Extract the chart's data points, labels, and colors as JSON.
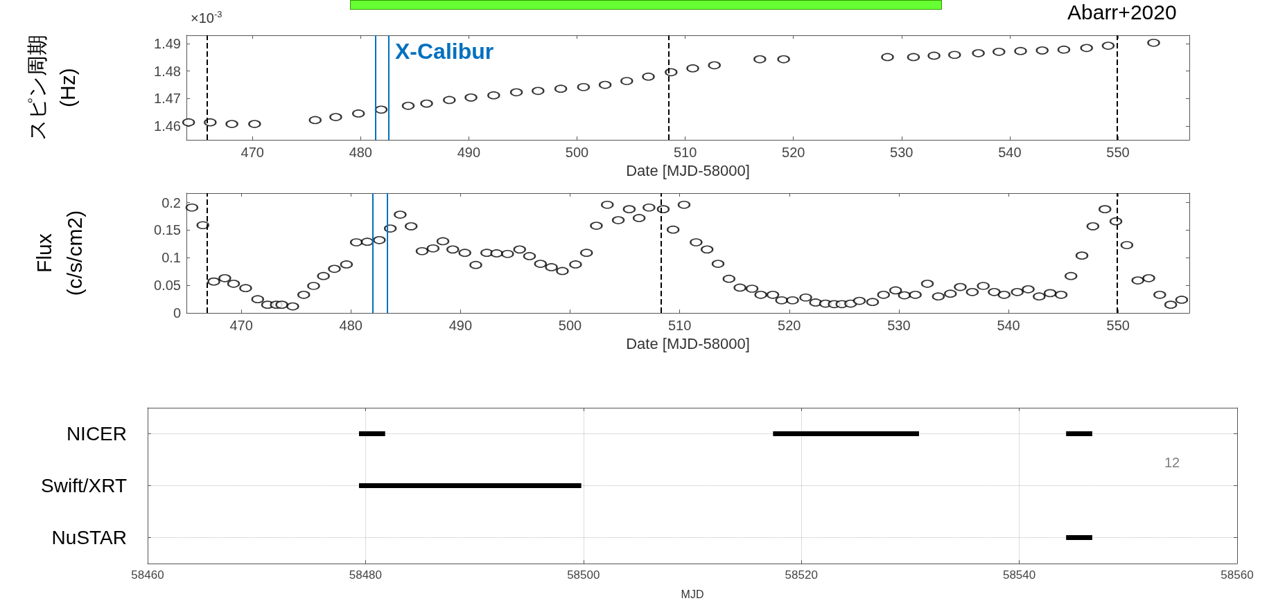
{
  "chart_data": [
    {
      "type": "scatter",
      "ylabel": "スピン周期\n(Hz)",
      "xlabel": "Date [MJD-58000]",
      "annotations": [
        "×10$^{-3}$",
        "Abarr+2020",
        "X-Calibur"
      ],
      "x": [
        464.1,
        466.1,
        468.1,
        470.2,
        475.8,
        477.7,
        479.8,
        481.9,
        484.4,
        486.1,
        488.2,
        490.2,
        492.3,
        494.4,
        496.4,
        498.5,
        500.6,
        502.6,
        504.6,
        506.6,
        508.7,
        510.7,
        512.7,
        516.9,
        519.1,
        528.7,
        531.1,
        533.0,
        534.9,
        537.1,
        539.0,
        541.0,
        543.0,
        545.0,
        547.1,
        549.1,
        553.3
      ],
      "values": [
        1.4614,
        1.4614,
        1.4608,
        1.4608,
        1.4622,
        1.4633,
        1.4646,
        1.466,
        1.4674,
        1.4682,
        1.4695,
        1.4704,
        1.4712,
        1.4723,
        1.4728,
        1.4736,
        1.4742,
        1.475,
        1.4764,
        1.478,
        1.4796,
        1.481,
        1.4821,
        1.4843,
        1.4843,
        1.4851,
        1.4851,
        1.4856,
        1.4859,
        1.4865,
        1.487,
        1.4873,
        1.4875,
        1.4878,
        1.4884,
        1.4892,
        1.4903
      ],
      "color": "#000000",
      "marker": "circle",
      "xlim": [
        463.9,
        556.6
      ],
      "ylim": [
        1.455,
        1.493
      ],
      "xticks": [
        470,
        480,
        490,
        500,
        510,
        520,
        530,
        540,
        550
      ],
      "yticks": [
        1.46,
        1.47,
        1.48,
        1.49
      ],
      "ref_lines": [
        {
          "axis": "x",
          "value": 465.8,
          "color": "#000000",
          "line_style": "dashed"
        },
        {
          "axis": "x",
          "value": 508.5,
          "color": "#000000",
          "line_style": "dashed"
        },
        {
          "axis": "x",
          "value": 549.9,
          "color": "#000000",
          "line_style": "dashed"
        },
        {
          "axis": "x",
          "value": 481.4,
          "color": "#0070c0",
          "line_style": "solid"
        },
        {
          "axis": "x",
          "value": 482.6,
          "color": "#0070c0",
          "line_style": "solid"
        }
      ]
    },
    {
      "type": "scatter",
      "ylabel": "Flux\n(c/s/cm2)",
      "xlabel": "Date [MJD-58000]",
      "x": [
        465.5,
        466.5,
        467.5,
        468.5,
        469.3,
        470.4,
        471.5,
        472.4,
        473.2,
        473.7,
        474.7,
        475.7,
        476.6,
        477.5,
        478.5,
        479.6,
        480.5,
        481.5,
        482.6,
        483.6,
        484.5,
        485.5,
        486.5,
        487.5,
        488.4,
        489.3,
        490.4,
        491.4,
        492.4,
        493.3,
        494.3,
        495.4,
        496.3,
        497.3,
        498.3,
        499.3,
        500.5,
        501.5,
        502.4,
        503.4,
        504.4,
        505.4,
        506.3,
        507.2,
        508.5,
        509.4,
        510.4,
        511.5,
        512.5,
        513.5,
        514.5,
        515.5,
        516.6,
        517.4,
        518.5,
        519.3,
        520.3,
        521.5,
        522.4,
        523.3,
        524.1,
        524.8,
        525.6,
        526.4,
        527.6,
        528.6,
        529.7,
        530.5,
        531.5,
        532.6,
        533.6,
        534.7,
        535.6,
        536.7,
        537.7,
        538.7,
        539.6,
        540.8,
        541.8,
        542.8,
        543.8,
        544.8,
        545.7,
        546.7,
        547.7,
        548.8,
        549.8,
        550.8,
        551.8,
        552.8,
        553.8,
        554.8,
        555.8
      ],
      "values": [
        0.191,
        0.159,
        0.057,
        0.063,
        0.053,
        0.045,
        0.025,
        0.015,
        0.015,
        0.015,
        0.012,
        0.033,
        0.049,
        0.067,
        0.08,
        0.088,
        0.128,
        0.129,
        0.132,
        0.153,
        0.178,
        0.157,
        0.112,
        0.117,
        0.13,
        0.115,
        0.109,
        0.087,
        0.109,
        0.108,
        0.107,
        0.115,
        0.103,
        0.089,
        0.083,
        0.076,
        0.088,
        0.109,
        0.158,
        0.196,
        0.168,
        0.188,
        0.172,
        0.191,
        0.188,
        0.151,
        0.196,
        0.128,
        0.115,
        0.089,
        0.062,
        0.046,
        0.044,
        0.033,
        0.033,
        0.023,
        0.023,
        0.028,
        0.019,
        0.017,
        0.016,
        0.016,
        0.017,
        0.022,
        0.02,
        0.033,
        0.041,
        0.032,
        0.033,
        0.053,
        0.03,
        0.035,
        0.047,
        0.038,
        0.049,
        0.038,
        0.033,
        0.038,
        0.043,
        0.03,
        0.036,
        0.033,
        0.067,
        0.104,
        0.157,
        0.188,
        0.166,
        0.123,
        0.059,
        0.063,
        0.033,
        0.015,
        0.024
      ],
      "color": "#000000",
      "marker": "circle",
      "xlim": [
        465,
        556.5
      ],
      "ylim": [
        0,
        0.217
      ],
      "xticks": [
        470,
        480,
        490,
        500,
        510,
        520,
        530,
        540,
        550
      ],
      "yticks": [
        0,
        0.05,
        0.1,
        0.15,
        0.2
      ],
      "ref_lines": [
        {
          "axis": "x",
          "value": 466.9,
          "color": "#000000",
          "line_style": "dashed"
        },
        {
          "axis": "x",
          "value": 508.3,
          "color": "#000000",
          "line_style": "dashed"
        },
        {
          "axis": "x",
          "value": 549.9,
          "color": "#000000",
          "line_style": "dashed"
        },
        {
          "axis": "x",
          "value": 482.0,
          "color": "#0070c0",
          "line_style": "solid"
        },
        {
          "axis": "x",
          "value": 483.3,
          "color": "#0070c0",
          "line_style": "solid"
        }
      ]
    },
    {
      "type": "bar",
      "orientation": "horizontal",
      "xlabel": "MJD",
      "annotations": [
        "12"
      ],
      "categories": [
        "NICER",
        "Swift/XRT",
        "NuSTAR"
      ],
      "series": [
        {
          "color": "#000000",
          "base": [
            58479.4,
            58479.4,
            58544.3
          ],
          "values": [
            2.4,
            20.4,
            2.4
          ]
        },
        {
          "color": "#000000",
          "base": [
            58517.4,
            null,
            null
          ],
          "values": [
            13.4,
            null,
            null
          ]
        },
        {
          "color": "#000000",
          "base": [
            58544.3,
            null,
            null
          ],
          "values": [
            2.4,
            null,
            null
          ]
        }
      ],
      "xlim": [
        58460,
        58560
      ],
      "xticks": [
        58460,
        58480,
        58500,
        58520,
        58540,
        58560
      ],
      "grid": true
    }
  ]
}
